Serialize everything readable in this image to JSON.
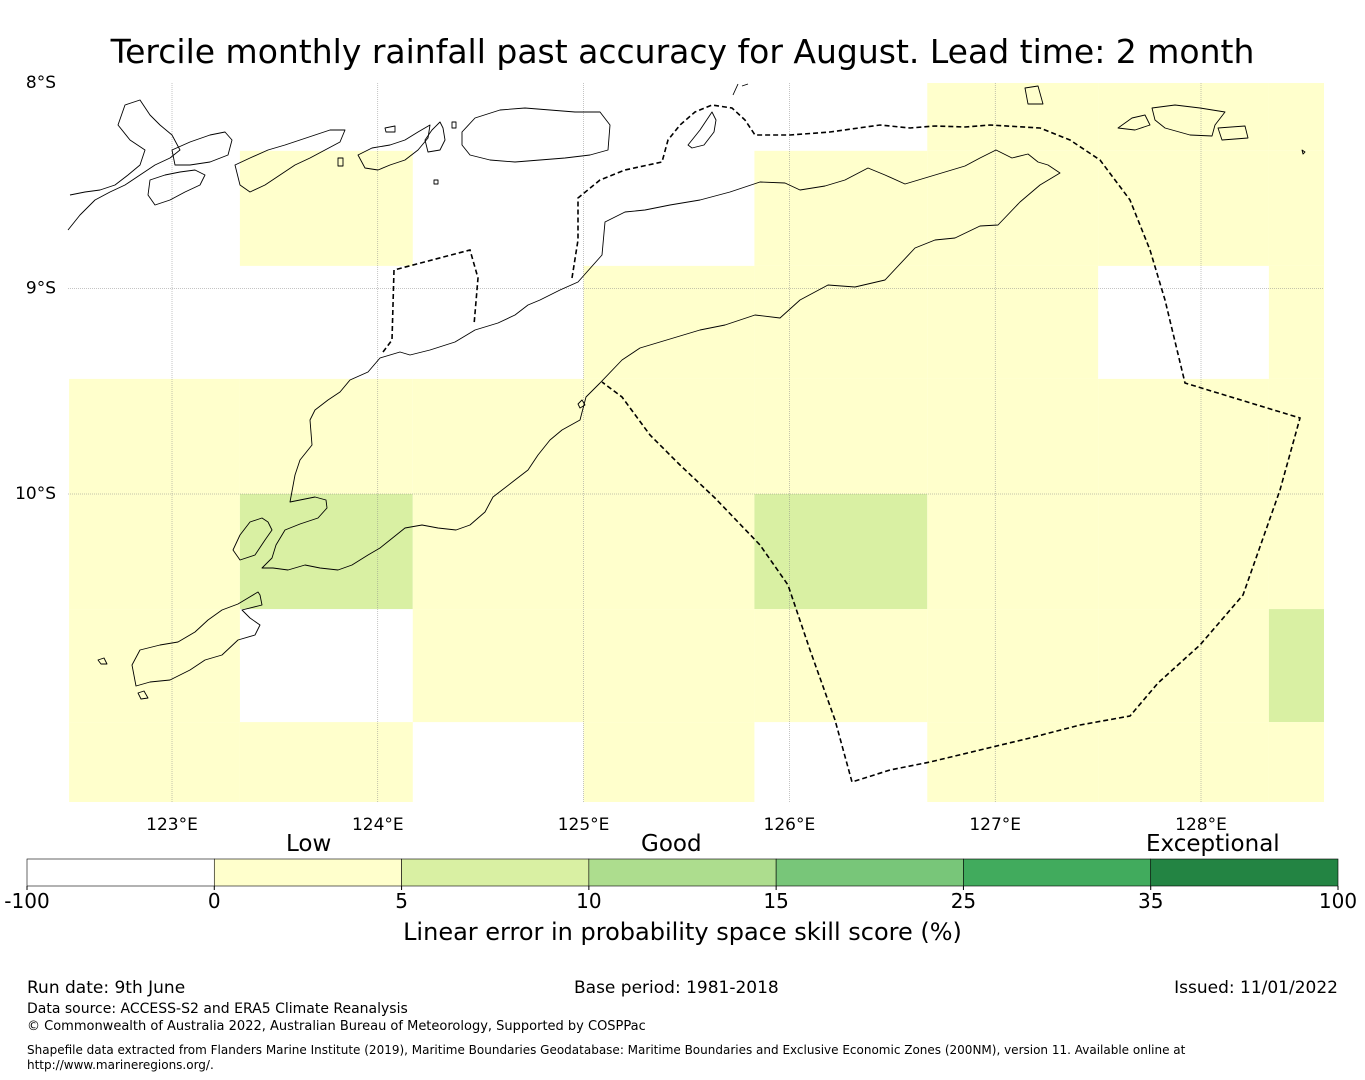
{
  "title": "Tercile monthly rainfall past accuracy for August. Lead time: 2 month",
  "map": {
    "lat_labels": [
      "8°S",
      "9°S",
      "10°S"
    ],
    "lon_labels": [
      "123°E",
      "124°E",
      "125°E",
      "126°E",
      "127°E",
      "128°E"
    ],
    "extent": {
      "lon_min": 122.5,
      "lon_max": 128.6,
      "lat_min": -11.5,
      "lat_max": -8.0
    },
    "skill_grid": {
      "cell_size_deg": 0.833,
      "lon_edges": [
        122.5,
        123.33,
        124.17,
        125.0,
        125.83,
        126.67,
        127.5,
        128.33,
        128.6
      ],
      "lat_edges": [
        -8.0,
        -8.33,
        -8.89,
        -9.44,
        -10.0,
        -10.56,
        -11.11,
        -11.5
      ],
      "values": [
        [
          null,
          null,
          null,
          null,
          null,
          2,
          2,
          2
        ],
        [
          null,
          2,
          null,
          null,
          2,
          2,
          2,
          2
        ],
        [
          null,
          null,
          null,
          2,
          2,
          2,
          null,
          2
        ],
        [
          2,
          2,
          2,
          2,
          2,
          2,
          2,
          2
        ],
        [
          2,
          7,
          2,
          2,
          7,
          2,
          2,
          2
        ],
        [
          2,
          null,
          2,
          2,
          2,
          2,
          2,
          7
        ],
        [
          2,
          2,
          null,
          2,
          null,
          2,
          2,
          2
        ]
      ]
    }
  },
  "colorbar": {
    "categories": [
      "Low",
      "Good",
      "Exceptional"
    ],
    "ticks": [
      "-100",
      "0",
      "5",
      "10",
      "15",
      "25",
      "35",
      "100"
    ],
    "colors": [
      "#ffffff",
      "#ffffcc",
      "#d9f0a3",
      "#addd8e",
      "#78c679",
      "#41ab5d",
      "#238443"
    ],
    "label": "Linear error in probability space skill score (%)"
  },
  "footer": {
    "run_date": "Run date: 9th June",
    "base_period": "Base period: 1981-2018",
    "issued": "Issued: 11/01/2022",
    "data_source": "Data source: ACCESS-S2 and ERA5 Climate Reanalysis",
    "copyright": "© Commonwealth of Australia 2022, Australian Bureau of Meteorology, Supported by COSPPac",
    "shapefile_line1": "Shapefile data extracted from Flanders Marine Institute (2019), Maritime Boundaries Geodatabase: Maritime Boundaries and Exclusive Economic Zones (200NM), version 11. Available online at",
    "shapefile_line2": "http://www.marineregions.org/."
  }
}
